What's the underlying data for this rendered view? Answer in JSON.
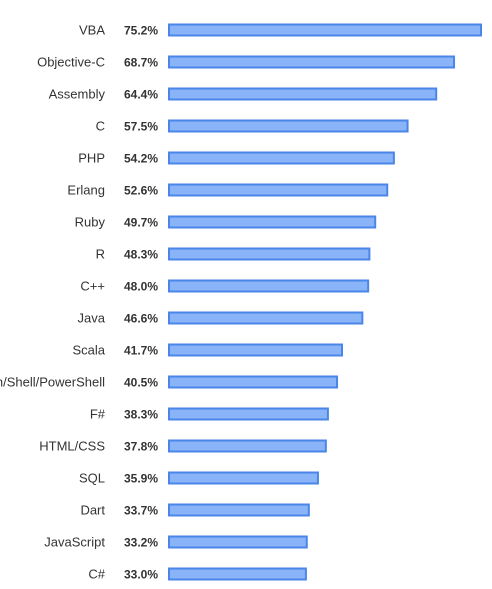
{
  "chart_data": {
    "type": "bar",
    "orientation": "horizontal",
    "title": "",
    "xlabel": "",
    "ylabel": "",
    "xlim": [
      0,
      75.2
    ],
    "grid": false,
    "categories": [
      "VBA",
      "Objective-C",
      "Assembly",
      "C",
      "PHP",
      "Erlang",
      "Ruby",
      "R",
      "C++",
      "Java",
      "Scala",
      "Bash/Shell/PowerShell",
      "F#",
      "HTML/CSS",
      "SQL",
      "Dart",
      "JavaScript",
      "C#"
    ],
    "values": [
      75.2,
      68.7,
      64.4,
      57.5,
      54.2,
      52.6,
      49.7,
      48.3,
      48.0,
      46.6,
      41.7,
      40.5,
      38.3,
      37.8,
      35.9,
      33.7,
      33.2,
      33.0
    ],
    "value_labels": [
      "75.2%",
      "68.7%",
      "64.4%",
      "57.5%",
      "54.2%",
      "52.6%",
      "49.7%",
      "48.3%",
      "48.0%",
      "46.6%",
      "41.7%",
      "40.5%",
      "38.3%",
      "37.8%",
      "35.9%",
      "33.7%",
      "33.2%",
      "33.0%"
    ],
    "colors": {
      "bar_fill": "#8ab4f8",
      "bar_stroke": "#4a86e8",
      "text": "#333333"
    }
  }
}
